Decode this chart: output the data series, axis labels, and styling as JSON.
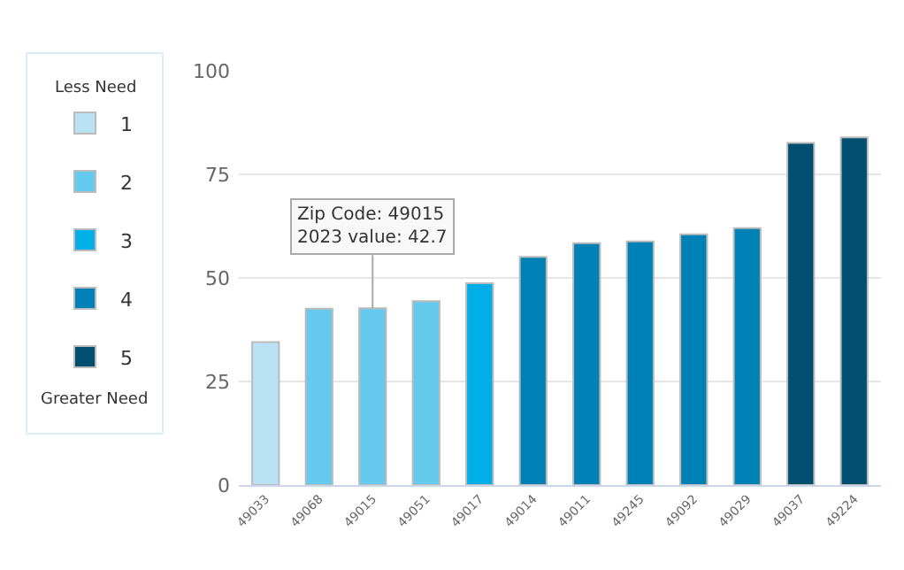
{
  "chart_data": {
    "type": "bar",
    "categories": [
      "49033",
      "49068",
      "49015",
      "49051",
      "49017",
      "49014",
      "49011",
      "49245",
      "49092",
      "49029",
      "49037",
      "49224"
    ],
    "series": [
      {
        "name": "1",
        "color": "#b9e3f5",
        "values": [
          34.5,
          null,
          null,
          null,
          null,
          null,
          null,
          null,
          null,
          null,
          null,
          null
        ]
      },
      {
        "name": "2",
        "color": "#66c9ee",
        "values": [
          null,
          42.6,
          42.7,
          44.4,
          null,
          null,
          null,
          null,
          null,
          null,
          null,
          null
        ]
      },
      {
        "name": "3",
        "color": "#00afe8",
        "values": [
          null,
          null,
          null,
          null,
          48.7,
          null,
          null,
          null,
          null,
          null,
          null,
          null
        ]
      },
      {
        "name": "4",
        "color": "#0081b6",
        "values": [
          null,
          null,
          null,
          null,
          null,
          55.1,
          58.4,
          58.8,
          60.5,
          62.0,
          null,
          null
        ]
      },
      {
        "name": "5",
        "color": "#004f70",
        "values": [
          null,
          null,
          null,
          null,
          null,
          null,
          null,
          null,
          null,
          null,
          82.6,
          83.9
        ]
      }
    ],
    "ylim": [
      0,
      100
    ],
    "yticks": [
      0,
      25,
      50,
      75,
      100
    ],
    "grid": "y",
    "legend": "left",
    "legend_title": "Less Need",
    "annotations": [
      "Greater Need",
      {
        "text": "Zip Code: 49015\n2023 value: 42.7",
        "x": "49015",
        "y": 42.7
      }
    ]
  }
}
